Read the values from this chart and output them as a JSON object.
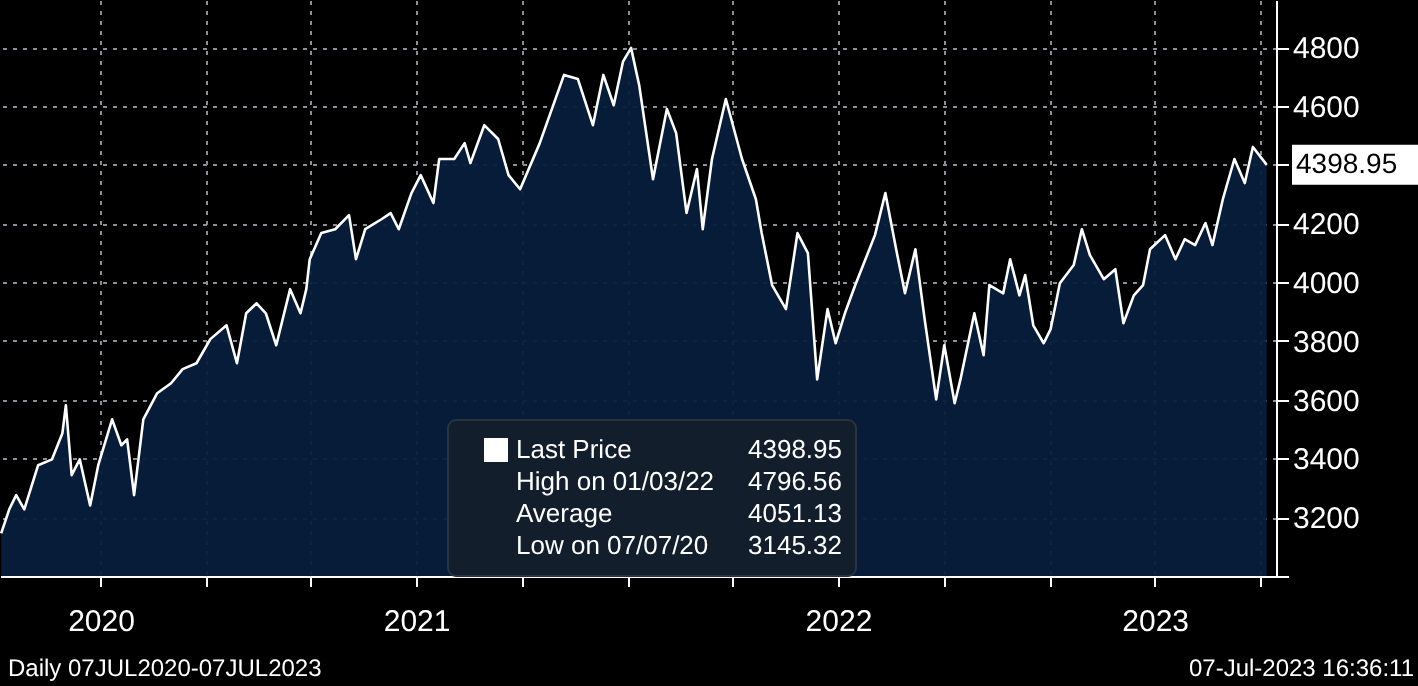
{
  "chart_data": {
    "type": "area",
    "x": [
      "2020-07-07",
      "2020-07-14",
      "2020-07-20",
      "2020-07-27",
      "2020-08-08",
      "2020-08-20",
      "2020-08-29",
      "2020-09-01",
      "2020-09-06",
      "2020-09-13",
      "2020-09-22",
      "2020-09-29",
      "2020-10-11",
      "2020-10-19",
      "2020-10-24",
      "2020-10-30",
      "2020-11-07",
      "2020-11-19",
      "2020-12-01",
      "2020-12-11",
      "2020-12-23",
      "2021-01-04",
      "2021-01-18",
      "2021-01-27",
      "2021-02-04",
      "2021-02-13",
      "2021-02-21",
      "2021-03-02",
      "2021-03-14",
      "2021-03-23",
      "2021-03-28",
      "2021-03-31",
      "2021-04-10",
      "2021-04-22",
      "2021-05-04",
      "2021-05-10",
      "2021-05-18",
      "2021-06-01",
      "2021-06-09",
      "2021-06-16",
      "2021-06-27",
      "2021-07-05",
      "2021-07-16",
      "2021-07-21",
      "2021-08-03",
      "2021-08-12",
      "2021-08-17",
      "2021-08-29",
      "2021-09-10",
      "2021-09-19",
      "2021-09-29",
      "2021-10-16",
      "2021-11-06",
      "2021-11-18",
      "2021-12-01",
      "2021-12-10",
      "2021-12-19",
      "2021-12-27",
      "2022-01-03",
      "2022-01-10",
      "2022-01-22",
      "2022-02-03",
      "2022-02-11",
      "2022-02-20",
      "2022-03-01",
      "2022-03-06",
      "2022-03-14",
      "2022-03-26",
      "2022-04-09",
      "2022-04-21",
      "2022-04-26",
      "2022-05-05",
      "2022-05-17",
      "2022-05-27",
      "2022-06-05",
      "2022-06-13",
      "2022-06-22",
      "2022-06-29",
      "2022-07-07",
      "2022-07-16",
      "2022-08-02",
      "2022-08-11",
      "2022-08-21",
      "2022-08-28",
      "2022-09-06",
      "2022-09-14",
      "2022-09-24",
      "2022-10-01",
      "2022-10-10",
      "2022-10-15",
      "2022-10-27",
      "2022-11-04",
      "2022-11-09",
      "2022-11-21",
      "2022-11-27",
      "2022-12-05",
      "2022-12-10",
      "2022-12-17",
      "2022-12-26",
      "2023-01-01",
      "2023-01-09",
      "2023-01-21",
      "2023-01-28",
      "2023-02-04",
      "2023-02-16",
      "2023-02-26",
      "2023-03-05",
      "2023-03-14",
      "2023-03-22",
      "2023-03-28",
      "2023-04-10",
      "2023-04-19",
      "2023-04-27",
      "2023-05-06",
      "2023-05-15",
      "2023-05-21",
      "2023-05-30",
      "2023-06-09",
      "2023-06-18",
      "2023-06-25",
      "2023-07-07"
    ],
    "series": [
      {
        "name": "Last Price",
        "color": "#ffffff",
        "values": [
          3145,
          3227,
          3275,
          3227,
          3377,
          3397,
          3486,
          3581,
          3343,
          3397,
          3240,
          3377,
          3533,
          3445,
          3465,
          3275,
          3533,
          3622,
          3656,
          3704,
          3724,
          3806,
          3853,
          3724,
          3894,
          3928,
          3894,
          3785,
          3976,
          3894,
          3976,
          4078,
          4167,
          4180,
          4228,
          4078,
          4180,
          4214,
          4235,
          4180,
          4303,
          4364,
          4269,
          4419,
          4419,
          4473,
          4405,
          4534,
          4487,
          4364,
          4316,
          4473,
          4705,
          4691,
          4534,
          4705,
          4602,
          4750,
          4797,
          4671,
          4350,
          4589,
          4507,
          4235,
          4385,
          4180,
          4419,
          4623,
          4419,
          4282,
          4167,
          3990,
          3908,
          4167,
          4099,
          3669,
          3908,
          3792,
          3894,
          3990,
          4160,
          4303,
          4099,
          3962,
          4112,
          3874,
          3601,
          3785,
          3588,
          3669,
          3894,
          3751,
          3990,
          3962,
          4078,
          3955,
          4024,
          3853,
          3792,
          3840,
          3996,
          4058,
          4180,
          4092,
          4010,
          4044,
          3860,
          3955,
          3990,
          4112,
          4160,
          4078,
          4146,
          4126,
          4201,
          4126,
          4282,
          4419,
          4337,
          4460,
          4399
        ]
      }
    ],
    "xlim": [
      "2020-07-06",
      "2023-07-15"
    ],
    "xticks": [
      {
        "value": "2020-10-01",
        "label": "2020"
      },
      {
        "value": "2021-01-01",
        "label": null
      },
      {
        "value": "2021-04-01",
        "label": null
      },
      {
        "value": "2021-07-01",
        "label": "2021"
      },
      {
        "value": "2021-10-01",
        "label": null
      },
      {
        "value": "2022-01-01",
        "label": null
      },
      {
        "value": "2022-04-01",
        "label": null
      },
      {
        "value": "2022-07-01",
        "label": "2022"
      },
      {
        "value": "2022-10-01",
        "label": null
      },
      {
        "value": "2023-01-01",
        "label": null
      },
      {
        "value": "2023-04-01",
        "label": "2023"
      },
      {
        "value": "2023-07-01",
        "label": null
      }
    ],
    "ylim": [
      3000,
      4960
    ],
    "yticks": [
      {
        "value": 3000,
        "label": null
      },
      3200,
      3400,
      3600,
      3800,
      4000,
      4200,
      {
        "value": 4400,
        "label": null
      },
      4600,
      4800
    ],
    "grid": true,
    "legend": "bottom",
    "annotations": [
      "4398.95",
      "High on 01/03/22",
      "4796.56",
      "Average",
      "4051.13",
      "Low on 07/07/20",
      "3145.32",
      "Daily 07JUL2020-07JUL2023",
      "07-Jul-2023 16:36:11"
    ]
  }
}
